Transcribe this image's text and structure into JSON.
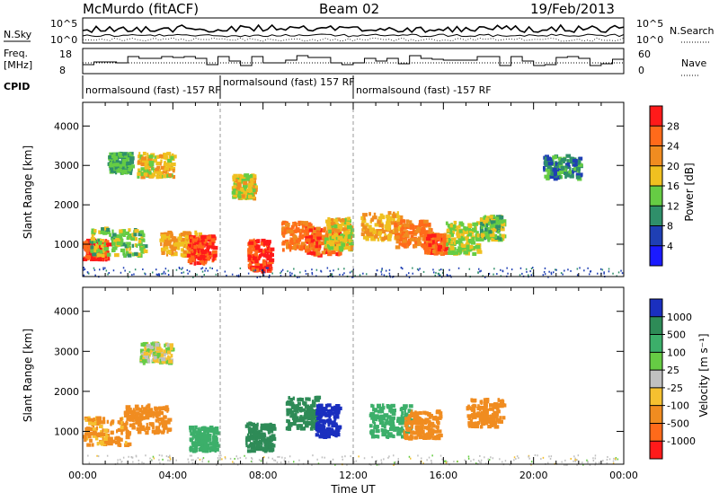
{
  "header": {
    "station": "McMurdo (fitACF)",
    "beam": "Beam 02",
    "date": "19/Feb/2013"
  },
  "panels": {
    "nsky_label": "N.Sky",
    "nsky_ticks": [
      "10^5",
      "10^0"
    ],
    "nsearch_label": "N.Search",
    "nsearch_ticks": [
      "10^5",
      "10^0"
    ],
    "freq_label_1": "Freq.",
    "freq_label_2": "[MHz]",
    "freq_ticks": [
      "18",
      "8"
    ],
    "nave_label": "Nave",
    "nave_ticks": [
      "60",
      "0"
    ],
    "cpid_label": "CPID",
    "cpid_segments": [
      {
        "label": "normalsound (fast) -157 RF",
        "start_hour": 0,
        "end_hour": 6.1
      },
      {
        "label": "normalsound (fast) 157 RF",
        "start_hour": 6.1,
        "end_hour": 12.0
      },
      {
        "label": "normalsound (fast) -157 RF",
        "start_hour": 12.0,
        "end_hour": 24
      }
    ]
  },
  "chart_data": [
    {
      "type": "heatmap",
      "quantity": "power",
      "ylabel": "Slant Range [km]",
      "xlabel": "",
      "xlim": [
        0,
        24
      ],
      "ylim": [
        180,
        4600
      ],
      "y_ticks": [
        "1000",
        "2000",
        "3000",
        "4000"
      ],
      "y_tick_values": [
        1000,
        2000,
        3000,
        4000
      ],
      "colorbar": {
        "label": "Power [dB]",
        "levels": [
          "4",
          "8",
          "12",
          "16",
          "20",
          "24",
          "28"
        ],
        "colors": [
          "#1a1aff",
          "#1f3fb4",
          "#2f8f6a",
          "#66cc44",
          "#f0c020",
          "#f08c20",
          "#ff6a1a",
          "#ff1a1a"
        ]
      },
      "dashed_markers_hour": [
        6.1,
        12.0
      ],
      "blobs": [
        {
          "t": 0.4,
          "r": 900,
          "dt": 0.7,
          "dr": 250,
          "v": 28
        },
        {
          "t": 1.5,
          "r": 1100,
          "dt": 1.2,
          "dr": 350,
          "v": 14
        },
        {
          "t": 3.2,
          "r": 3050,
          "dt": 0.8,
          "dr": 300,
          "v": 18
        },
        {
          "t": 1.6,
          "r": 3100,
          "dt": 0.5,
          "dr": 250,
          "v": 12
        },
        {
          "t": 4.3,
          "r": 1050,
          "dt": 0.9,
          "dr": 300,
          "v": 20
        },
        {
          "t": 5.2,
          "r": 900,
          "dt": 0.6,
          "dr": 350,
          "v": 28
        },
        {
          "t": 7.8,
          "r": 750,
          "dt": 0.5,
          "dr": 400,
          "v": 28
        },
        {
          "t": 7.1,
          "r": 2500,
          "dt": 0.5,
          "dr": 300,
          "v": 18
        },
        {
          "t": 9.5,
          "r": 1250,
          "dt": 0.7,
          "dr": 350,
          "v": 24
        },
        {
          "t": 10.6,
          "r": 1100,
          "dt": 0.8,
          "dr": 350,
          "v": 26
        },
        {
          "t": 11.3,
          "r": 1300,
          "dt": 0.6,
          "dr": 400,
          "v": 18
        },
        {
          "t": 13.2,
          "r": 1500,
          "dt": 0.9,
          "dr": 350,
          "v": 20
        },
        {
          "t": 14.6,
          "r": 1300,
          "dt": 0.8,
          "dr": 350,
          "v": 24
        },
        {
          "t": 15.6,
          "r": 1050,
          "dt": 0.5,
          "dr": 250,
          "v": 26
        },
        {
          "t": 16.8,
          "r": 1200,
          "dt": 0.7,
          "dr": 400,
          "v": 16
        },
        {
          "t": 18.1,
          "r": 1450,
          "dt": 0.5,
          "dr": 300,
          "v": 14
        },
        {
          "t": 21.2,
          "r": 3000,
          "dt": 0.8,
          "dr": 300,
          "v": 10
        }
      ]
    },
    {
      "type": "heatmap",
      "quantity": "velocity",
      "ylabel": "Slant Range [km]",
      "xlabel": "Time UT",
      "xlim": [
        0,
        24
      ],
      "ylim": [
        180,
        4600
      ],
      "x_ticks": [
        "00:00",
        "04:00",
        "08:00",
        "12:00",
        "16:00",
        "20:00",
        "00:00"
      ],
      "x_tick_values": [
        0,
        4,
        8,
        12,
        16,
        20,
        24
      ],
      "y_ticks": [
        "1000",
        "2000",
        "3000",
        "4000"
      ],
      "y_tick_values": [
        1000,
        2000,
        3000,
        4000
      ],
      "colorbar": {
        "label": "Velocity [m s⁻¹]",
        "levels": [
          "1000",
          "500",
          "100",
          "25",
          "-25",
          "-100",
          "-500",
          "-1000"
        ],
        "colors": [
          "#1a2fbf",
          "#2e8b57",
          "#3caf6a",
          "#66cc44",
          "#c0c0c0",
          "#f5c030",
          "#f08c20",
          "#ff6a1a",
          "#ff1a1a"
        ]
      },
      "dashed_markers_hour": [
        6.1,
        12.0
      ],
      "blobs": [
        {
          "t": 0.8,
          "r": 1050,
          "dt": 1.2,
          "dr": 350,
          "v": -150
        },
        {
          "t": 2.8,
          "r": 1350,
          "dt": 1.0,
          "dr": 350,
          "v": -200
        },
        {
          "t": 5.3,
          "r": 850,
          "dt": 0.6,
          "dr": 300,
          "v": 200
        },
        {
          "t": 7.8,
          "r": 900,
          "dt": 0.6,
          "dr": 350,
          "v": 600
        },
        {
          "t": 9.7,
          "r": 1500,
          "dt": 0.7,
          "dr": 400,
          "v": 600
        },
        {
          "t": 10.8,
          "r": 1300,
          "dt": 0.5,
          "dr": 400,
          "v": 1200
        },
        {
          "t": 13.6,
          "r": 1300,
          "dt": 0.9,
          "dr": 400,
          "v": 400
        },
        {
          "t": 15.0,
          "r": 1200,
          "dt": 0.8,
          "dr": 350,
          "v": -300
        },
        {
          "t": 17.8,
          "r": 1500,
          "dt": 0.8,
          "dr": 350,
          "v": -300
        },
        {
          "t": 3.2,
          "r": 3000,
          "dt": 0.7,
          "dr": 250,
          "v": 0
        }
      ]
    }
  ]
}
